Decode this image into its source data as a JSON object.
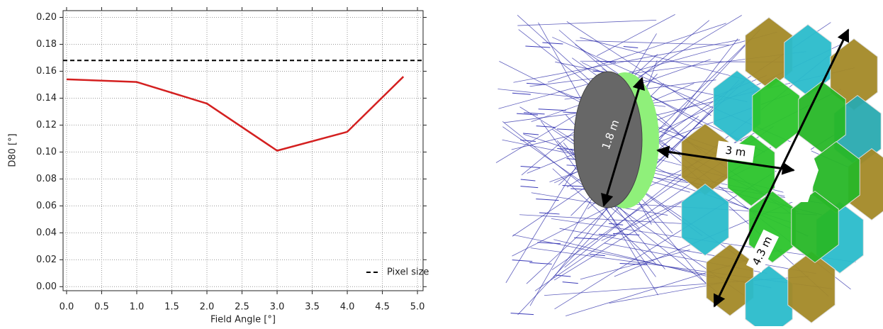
{
  "chart_data": {
    "type": "line",
    "xlabel": "Field Angle [°]",
    "ylabel": "D80 [°]",
    "xlim": [
      -0.05,
      5.08
    ],
    "ylim": [
      -0.003,
      0.205
    ],
    "xticks": [
      {
        "value": 0,
        "label": "0.0"
      },
      {
        "value": 0.5,
        "label": "0.5"
      },
      {
        "value": 1,
        "label": "1.0"
      },
      {
        "value": 1.5,
        "label": "1.5"
      },
      {
        "value": 2,
        "label": "2.0"
      },
      {
        "value": 2.5,
        "label": "2.5"
      },
      {
        "value": 3,
        "label": "3.0"
      },
      {
        "value": 3.5,
        "label": "3.5"
      },
      {
        "value": 4,
        "label": "4.0"
      },
      {
        "value": 4.5,
        "label": "4.5"
      },
      {
        "value": 5,
        "label": "5.0"
      }
    ],
    "yticks": [
      {
        "value": 0,
        "label": "0.00"
      },
      {
        "value": 0.02,
        "label": "0.02"
      },
      {
        "value": 0.04,
        "label": "0.04"
      },
      {
        "value": 0.06,
        "label": "0.06"
      },
      {
        "value": 0.08,
        "label": "0.08"
      },
      {
        "value": 0.1,
        "label": "0.10"
      },
      {
        "value": 0.12,
        "label": "0.12"
      },
      {
        "value": 0.14,
        "label": "0.14"
      },
      {
        "value": 0.16,
        "label": "0.16"
      },
      {
        "value": 0.18,
        "label": "0.18"
      },
      {
        "value": 0.2,
        "label": "0.20"
      }
    ],
    "grid": true,
    "legend": "lower right",
    "series": [
      {
        "color": "#d42020",
        "x": [
          0,
          1,
          2,
          3,
          4,
          4.8
        ],
        "values": [
          0.154,
          0.152,
          0.136,
          0.101,
          0.115,
          0.156
        ]
      },
      {
        "name": "Pixel size",
        "color": "#000000",
        "dashed": true,
        "values": [
          0.168
        ]
      }
    ]
  },
  "diagram": {
    "labels": [
      "1.8 m",
      "3 m",
      "4.3 m"
    ]
  }
}
